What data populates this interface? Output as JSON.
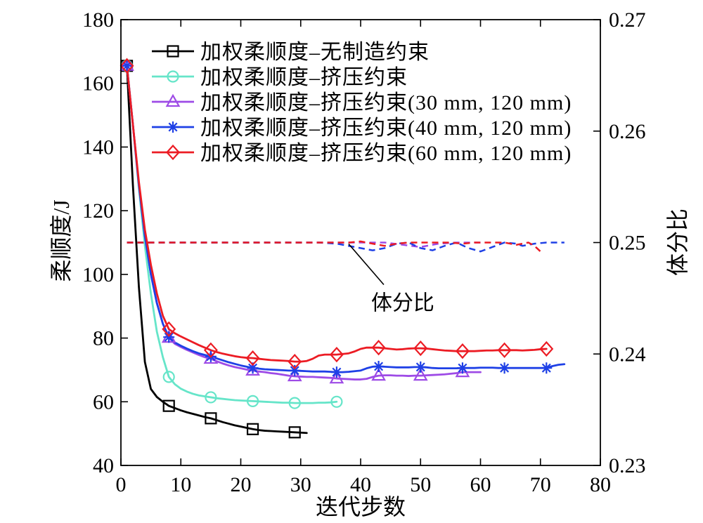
{
  "chart_data": {
    "type": "line",
    "xlabel": "迭代步数",
    "ylabel": "柔顺度/J",
    "y2label": "体分比",
    "xlim": [
      0,
      80
    ],
    "ylim": [
      40,
      180
    ],
    "y2lim": [
      0.23,
      0.27
    ],
    "xticks": [
      0,
      10,
      20,
      30,
      40,
      50,
      60,
      70,
      80
    ],
    "yticks": [
      40,
      60,
      80,
      100,
      120,
      140,
      160,
      180
    ],
    "y2ticks": [
      0.23,
      0.24,
      0.25,
      0.26,
      0.27
    ],
    "grid": false,
    "legend": "upper left",
    "markevery": 7,
    "series": [
      {
        "name": "加权柔顺度–无制造约束",
        "color": "#000000",
        "marker": "square",
        "x": [
          1,
          2,
          3,
          4,
          5,
          6,
          7,
          8,
          9,
          10,
          11,
          12,
          13,
          14,
          15,
          16,
          17,
          18,
          19,
          20,
          21,
          22,
          23,
          24,
          25,
          26,
          27,
          28,
          29,
          30,
          31
        ],
        "y": [
          165.5,
          128,
          96,
          72.5,
          64,
          61.5,
          60,
          58.7,
          58,
          57.3,
          56.7,
          56.2,
          55.7,
          55.2,
          54.8,
          54.2,
          53.6,
          53.1,
          52.6,
          52.2,
          51.8,
          51.4,
          51.1,
          50.9,
          50.8,
          50.7,
          50.6,
          50.5,
          50.4,
          50.3,
          50.2
        ],
        "y2_points": [
          [
            1,
            0.25
          ],
          [
            31,
            0.25
          ]
        ]
      },
      {
        "name": "加权柔顺度–挤压约束",
        "color": "#66e5c9",
        "marker": "circle",
        "x": [
          1,
          2,
          3,
          4,
          5,
          6,
          7,
          8,
          9,
          10,
          11,
          12,
          13,
          14,
          15,
          16,
          17,
          18,
          19,
          20,
          21,
          22,
          23,
          24,
          25,
          26,
          27,
          28,
          29,
          30,
          31,
          32,
          33,
          34,
          35,
          36
        ],
        "y": [
          165.5,
          147,
          127,
          109,
          94,
          82,
          74,
          67.8,
          65.5,
          64.1,
          63.2,
          62.5,
          62,
          61.7,
          61.4,
          61.1,
          60.9,
          60.7,
          60.5,
          60.4,
          60.3,
          60.2,
          60.1,
          60,
          59.9,
          59.8,
          59.7,
          59.7,
          59.6,
          59.6,
          59.6,
          59.6,
          59.7,
          59.7,
          59.8,
          60
        ],
        "y2_points": [
          [
            1,
            0.25
          ],
          [
            36,
            0.25
          ]
        ]
      },
      {
        "name": "加权柔顺度–挤压约束(30 mm, 120 mm)",
        "color": "#9e4be6",
        "marker": "triangle",
        "x": [
          1,
          2,
          3,
          4,
          5,
          6,
          7,
          8,
          9,
          10,
          11,
          12,
          13,
          14,
          15,
          16,
          17,
          18,
          19,
          20,
          21,
          22,
          23,
          24,
          25,
          26,
          27,
          28,
          29,
          30,
          31,
          32,
          33,
          34,
          35,
          36,
          37,
          38,
          39,
          40,
          41,
          42,
          43,
          44,
          45,
          46,
          47,
          48,
          49,
          50,
          51,
          52,
          53,
          54,
          55,
          56,
          57,
          58,
          59,
          60
        ],
        "y": [
          165.5,
          147,
          128,
          112,
          100,
          91,
          84.5,
          80.1,
          78.2,
          77.2,
          76.3,
          75.5,
          74.7,
          74,
          73.5,
          72.7,
          72,
          71.4,
          70.9,
          70.5,
          70.1,
          69.8,
          69.5,
          69.3,
          69,
          68.8,
          68.5,
          68.2,
          68,
          67.9,
          67.8,
          67.8,
          67.7,
          67.6,
          67.5,
          67.3,
          67.2,
          67.1,
          67,
          67,
          67.2,
          67.8,
          68.2,
          68.3,
          68.3,
          68.2,
          68.2,
          68.1,
          68.2,
          68.2,
          68.3,
          68.4,
          68.5,
          68.6,
          68.8,
          69,
          69.3,
          69.3,
          69.3,
          69.3
        ],
        "y2_points": [
          [
            1,
            0.25
          ],
          [
            44,
            0.25
          ],
          [
            47,
            0.2498
          ],
          [
            50,
            0.2496
          ],
          [
            53,
            0.2499
          ],
          [
            56,
            0.25
          ],
          [
            60,
            0.25
          ]
        ]
      },
      {
        "name": "加权柔顺度–挤压约束(40 mm, 120 mm)",
        "color": "#1e40e6",
        "marker": "asterisk",
        "x": [
          1,
          2,
          3,
          4,
          5,
          6,
          7,
          8,
          9,
          10,
          11,
          12,
          13,
          14,
          15,
          16,
          17,
          18,
          19,
          20,
          21,
          22,
          23,
          24,
          25,
          26,
          27,
          28,
          29,
          30,
          31,
          32,
          33,
          34,
          35,
          36,
          37,
          38,
          39,
          40,
          41,
          42,
          43,
          44,
          45,
          46,
          47,
          48,
          49,
          50,
          51,
          52,
          53,
          54,
          55,
          56,
          57,
          58,
          59,
          60,
          61,
          62,
          63,
          64,
          65,
          66,
          67,
          68,
          69,
          70,
          71,
          72,
          73,
          74
        ],
        "y": [
          165.5,
          147,
          128,
          112,
          100,
          91,
          84.5,
          80.3,
          78.6,
          77.6,
          76.7,
          75.9,
          75.2,
          74.7,
          74.2,
          73.6,
          73,
          72.4,
          71.9,
          71.4,
          71,
          70.6,
          70.4,
          70.2,
          70.1,
          70,
          69.9,
          69.8,
          69.8,
          69.7,
          69.6,
          69.5,
          69.5,
          69.5,
          69.4,
          69.3,
          69.3,
          69.4,
          69.6,
          69.8,
          70.5,
          71,
          71.1,
          71,
          70.9,
          70.8,
          70.8,
          70.8,
          70.9,
          70.9,
          70.8,
          70.6,
          70.5,
          70.5,
          70.5,
          70.5,
          70.6,
          70.6,
          70.6,
          70.7,
          70.7,
          70.7,
          70.6,
          70.6,
          70.6,
          70.6,
          70.6,
          70.6,
          70.6,
          70.6,
          70.6,
          71.2,
          71.6,
          71.8
        ],
        "y2_points": [
          [
            1,
            0.25
          ],
          [
            33,
            0.25
          ],
          [
            36,
            0.2499
          ],
          [
            39,
            0.2496
          ],
          [
            42,
            0.2493
          ],
          [
            44,
            0.2495
          ],
          [
            46,
            0.2499
          ],
          [
            48,
            0.25
          ],
          [
            50,
            0.2495
          ],
          [
            52,
            0.2493
          ],
          [
            54,
            0.2497
          ],
          [
            56,
            0.25
          ],
          [
            58,
            0.2495
          ],
          [
            60,
            0.2492
          ],
          [
            62,
            0.2496
          ],
          [
            64,
            0.25
          ],
          [
            66,
            0.2499
          ],
          [
            67,
            0.2497
          ],
          [
            69,
            0.2499
          ],
          [
            71,
            0.25
          ],
          [
            74,
            0.25
          ]
        ]
      },
      {
        "name": "加权柔顺度–挤压约束(60 mm, 120 mm)",
        "color": "#ec1c24",
        "marker": "diamond",
        "x": [
          1,
          2,
          3,
          4,
          5,
          6,
          7,
          8,
          9,
          10,
          11,
          12,
          13,
          14,
          15,
          16,
          17,
          18,
          19,
          20,
          21,
          22,
          23,
          24,
          25,
          26,
          27,
          28,
          29,
          30,
          31,
          32,
          33,
          34,
          35,
          36,
          37,
          38,
          39,
          40,
          41,
          42,
          43,
          44,
          45,
          46,
          47,
          48,
          49,
          50,
          51,
          52,
          53,
          54,
          55,
          56,
          57,
          58,
          59,
          60,
          61,
          62,
          63,
          64,
          65,
          66,
          67,
          68,
          69,
          70,
          71
        ],
        "y": [
          165.5,
          147,
          129,
          114,
          103,
          94,
          87,
          82.8,
          81.5,
          80.5,
          79.6,
          78.7,
          77.8,
          77,
          76.2,
          75.6,
          75.1,
          74.7,
          74.3,
          74,
          73.8,
          73.7,
          73.5,
          73.3,
          73.1,
          73,
          72.9,
          72.8,
          72.6,
          72.6,
          72.8,
          73.5,
          74.5,
          74.8,
          74.8,
          74.8,
          75,
          75.2,
          75.8,
          76.6,
          77,
          77,
          77,
          76.8,
          76.6,
          76.4,
          76.5,
          76.7,
          76.8,
          76.8,
          76.7,
          76.5,
          76.3,
          76.1,
          76,
          75.9,
          75.9,
          75.9,
          75.9,
          76,
          76.1,
          76.1,
          76.2,
          76.2,
          76.2,
          76.2,
          76.1,
          76.2,
          76.3,
          76.5,
          76.6
        ],
        "y2_points": [
          [
            1,
            0.25
          ],
          [
            38,
            0.25
          ],
          [
            40,
            0.2501
          ],
          [
            42,
            0.2499
          ],
          [
            44,
            0.2497
          ],
          [
            46,
            0.2499
          ],
          [
            48,
            0.25
          ],
          [
            55,
            0.25
          ],
          [
            57,
            0.2499
          ],
          [
            59,
            0.25
          ],
          [
            64,
            0.25
          ],
          [
            66,
            0.2498
          ],
          [
            68,
            0.25
          ],
          [
            69,
            0.2497
          ],
          [
            70,
            0.2492
          ]
        ]
      }
    ],
    "annotations": [
      {
        "text": "体分比",
        "x": 38,
        "y2": 0.25
      }
    ]
  }
}
